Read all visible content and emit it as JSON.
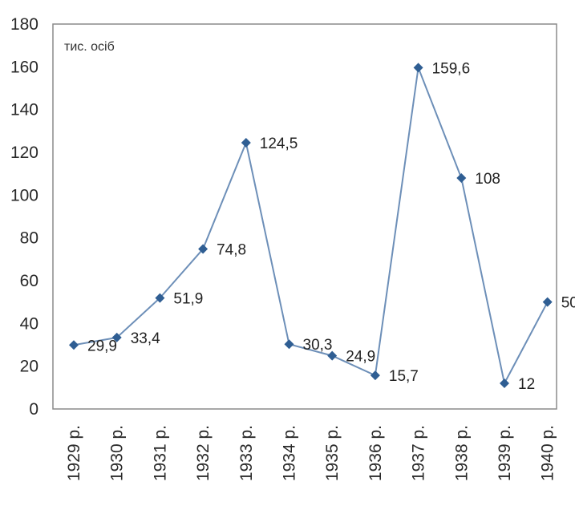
{
  "chart_data": {
    "type": "line",
    "title": "",
    "xlabel": "",
    "ylabel": "тис. осіб",
    "ylim": [
      0,
      180
    ],
    "yticks": [
      0,
      20,
      40,
      60,
      80,
      100,
      120,
      140,
      160,
      180
    ],
    "grid": false,
    "categories": [
      "1929 р.",
      "1930 р.",
      "1931 р.",
      "1932 р.",
      "1933 р.",
      "1934 р.",
      "1935 р.",
      "1936 р.",
      "1937 р.",
      "1938 р.",
      "1939 р.",
      "1940 р."
    ],
    "series": [
      {
        "values": [
          29.9,
          33.4,
          51.9,
          74.8,
          124.5,
          30.3,
          24.9,
          15.7,
          159.6,
          108,
          12,
          50
        ],
        "labels": [
          "29,9",
          "33,4",
          "51,9",
          "74,8",
          "124,5",
          "30,3",
          "24,9",
          "15,7",
          "159,6",
          "108",
          "12",
          "50"
        ]
      }
    ],
    "colors": {
      "line": "#6d8fb8",
      "marker": "#2f5e93",
      "frame": "#8a8a8a"
    }
  }
}
